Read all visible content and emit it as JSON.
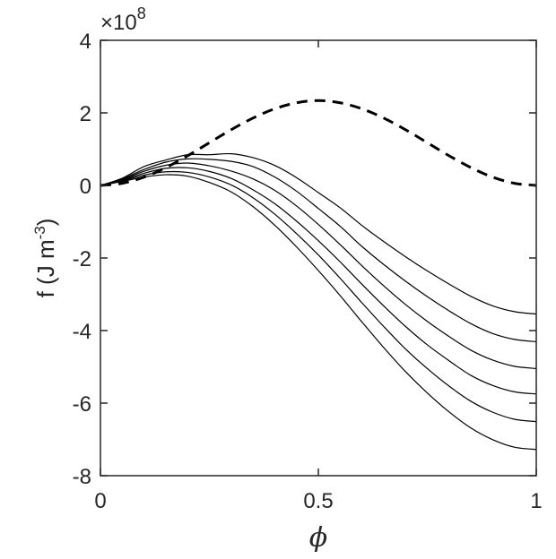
{
  "chart_data": {
    "type": "line",
    "title": "",
    "xlabel": "ϕ",
    "ylabel_main": "f (J m",
    "ylabel_sup": "-3",
    "ylabel_close": ")",
    "y_exponent_prefix": "×10",
    "y_exponent": "8",
    "xlim": [
      0,
      1
    ],
    "ylim": [
      -8,
      4
    ],
    "xticks": [
      0,
      0.5,
      1
    ],
    "xtick_labels": [
      "0",
      "0.5",
      "1"
    ],
    "yticks": [
      -8,
      -6,
      -4,
      -2,
      0,
      2,
      4
    ],
    "ytick_labels": [
      "-8",
      "-6",
      "-4",
      "-2",
      "0",
      "2",
      "4"
    ],
    "grid": false,
    "legend": "none",
    "axis_color": "#262626",
    "line_color": "#000000",
    "x": [
      0,
      0.05,
      0.1,
      0.15,
      0.2,
      0.25,
      0.3,
      0.35,
      0.4,
      0.45,
      0.5,
      0.55,
      0.6,
      0.65,
      0.7,
      0.75,
      0.8,
      0.85,
      0.9,
      0.95,
      1.0
    ],
    "series": [
      {
        "style": "dashed",
        "values": [
          0,
          0.059,
          0.229,
          0.491,
          0.818,
          1.178,
          1.536,
          1.857,
          2.113,
          2.278,
          2.34,
          2.278,
          2.113,
          1.857,
          1.536,
          1.178,
          0.818,
          0.491,
          0.229,
          0.059,
          0
        ]
      },
      {
        "style": "solid",
        "values": [
          0,
          0.198,
          0.52,
          0.7,
          0.846,
          0.847,
          0.873,
          0.766,
          0.55,
          0.214,
          -0.197,
          -0.616,
          -1.104,
          -1.547,
          -1.965,
          -2.356,
          -2.719,
          -3.057,
          -3.318,
          -3.478,
          -3.545
        ]
      },
      {
        "style": "solid",
        "values": [
          0,
          0.181,
          0.44,
          0.642,
          0.731,
          0.72,
          0.663,
          0.521,
          0.231,
          -0.159,
          -0.635,
          -1.125,
          -1.682,
          -2.179,
          -2.639,
          -3.066,
          -3.457,
          -3.81,
          -4.082,
          -4.244,
          -4.307
        ]
      },
      {
        "style": "solid",
        "values": [
          0,
          0.163,
          0.39,
          0.555,
          0.617,
          0.541,
          0.397,
          0.181,
          -0.137,
          -0.567,
          -1.076,
          -1.63,
          -2.213,
          -2.767,
          -3.282,
          -3.748,
          -4.165,
          -4.541,
          -4.814,
          -4.985,
          -5.047
        ]
      },
      {
        "style": "solid",
        "values": [
          0,
          0.145,
          0.335,
          0.472,
          0.486,
          0.386,
          0.192,
          -0.12,
          -0.503,
          -0.985,
          -1.523,
          -2.105,
          -2.724,
          -3.322,
          -3.886,
          -4.394,
          -4.832,
          -5.236,
          -5.513,
          -5.688,
          -5.747
        ]
      },
      {
        "style": "solid",
        "values": [
          0,
          0.127,
          0.285,
          0.377,
          0.36,
          0.234,
          0.013,
          -0.338,
          -0.791,
          -1.328,
          -1.915,
          -2.559,
          -3.235,
          -3.889,
          -4.508,
          -5.048,
          -5.531,
          -5.949,
          -6.25,
          -6.445,
          -6.509
        ]
      },
      {
        "style": "solid",
        "values": [
          0,
          0.109,
          0.234,
          0.295,
          0.255,
          0.081,
          -0.179,
          -0.584,
          -1.096,
          -1.694,
          -2.346,
          -3.037,
          -3.763,
          -4.469,
          -5.132,
          -5.721,
          -6.243,
          -6.686,
          -7.007,
          -7.215,
          -7.277
        ]
      }
    ]
  }
}
